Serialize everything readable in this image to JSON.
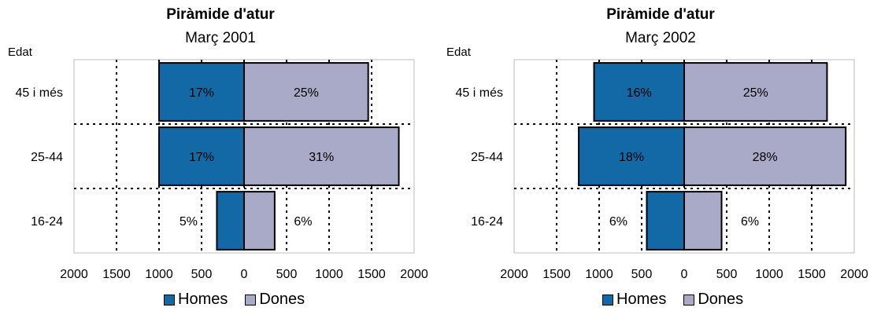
{
  "chart_data": [
    {
      "type": "bar",
      "orientation": "horizontal",
      "layout": "population-pyramid",
      "title": "Piràmide d'atur",
      "subtitle": "Març 2001",
      "ylabel": "Edat",
      "categories": [
        "45 i més",
        "25-44",
        "16-24"
      ],
      "series": [
        {
          "name": "Homes",
          "values": [
            1000,
            1000,
            320
          ],
          "labels": [
            "17%",
            "17%",
            "5%"
          ],
          "side": "left",
          "color": "#1369a5"
        },
        {
          "name": "Dones",
          "values": [
            1460,
            1820,
            360
          ],
          "labels": [
            "25%",
            "31%",
            "6%"
          ],
          "side": "right",
          "color": "#a8aac8"
        }
      ],
      "xlim": [
        -2000,
        2000
      ],
      "xticks": [
        -2000,
        -1500,
        -1000,
        -500,
        0,
        500,
        1000,
        1500,
        2000
      ],
      "xtick_labels": [
        "2000",
        "1500",
        "1000",
        "500",
        "0",
        "500",
        "1000",
        "1500",
        "2000"
      ],
      "grid": "dotted",
      "legend": "bottom"
    },
    {
      "type": "bar",
      "orientation": "horizontal",
      "layout": "population-pyramid",
      "title": "Piràmide d'atur",
      "subtitle": "Març 2002",
      "ylabel": "Edat",
      "categories": [
        "45 i més",
        "25-44",
        "16-24"
      ],
      "series": [
        {
          "name": "Homes",
          "values": [
            1060,
            1240,
            440
          ],
          "labels": [
            "16%",
            "18%",
            "6%"
          ],
          "side": "left",
          "color": "#1369a5"
        },
        {
          "name": "Dones",
          "values": [
            1680,
            1900,
            440
          ],
          "labels": [
            "25%",
            "28%",
            "6%"
          ],
          "side": "right",
          "color": "#a8aac8"
        }
      ],
      "xlim": [
        -2000,
        2000
      ],
      "xticks": [
        -2000,
        -1500,
        -1000,
        -500,
        0,
        500,
        1000,
        1500,
        2000
      ],
      "xtick_labels": [
        "2000",
        "1500",
        "1000",
        "500",
        "0",
        "500",
        "1000",
        "1500",
        "2000"
      ],
      "grid": "dotted",
      "legend": "bottom"
    }
  ]
}
